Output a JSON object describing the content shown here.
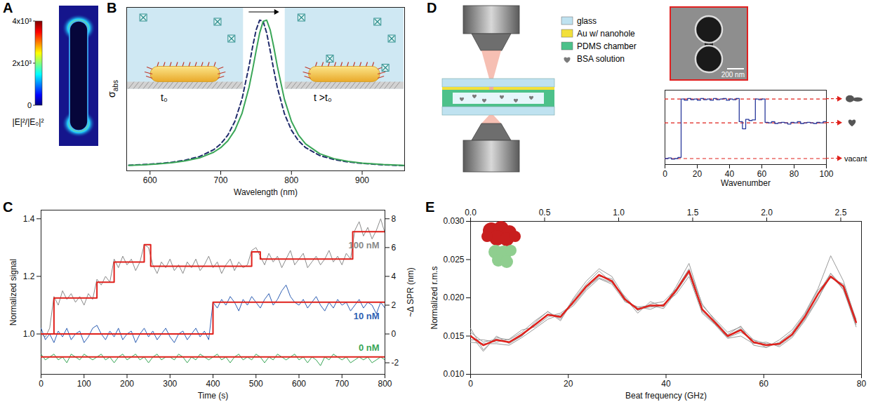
{
  "panel_A": {
    "letter": "A",
    "colorbar": {
      "range": [
        0,
        4000
      ],
      "ticks": [
        0,
        {
          "value": 2000,
          "label": "2x10³"
        },
        {
          "value": 4000,
          "label": "4x10³"
        }
      ],
      "label": "|E|²/|E₀|²"
    }
  },
  "panel_D": {
    "letter": "D",
    "legend": [
      {
        "label": "glass",
        "color": "#bfe2f0"
      },
      {
        "label": "Au w/ nanohole",
        "color": "#f2e03a"
      },
      {
        "label": "PDMS chamber",
        "color": "#4cc18a"
      },
      {
        "label": "BSA solution",
        "color": "#7a7a7a"
      }
    ],
    "scale_bar": "200 nm"
  },
  "chart_data": [
    {
      "panel": "B",
      "type": "line",
      "x_label": "Wavelength (nm)",
      "y_label": "σabs",
      "xlim": [
        567,
        960
      ],
      "xticks": [
        600,
        700,
        800,
        900
      ],
      "ylim": [
        0,
        1.1
      ],
      "yticks": [],
      "tick_labels": "x",
      "inset_labels": [
        "t₀",
        "t >t₀"
      ],
      "x": [
        570,
        590,
        610,
        630,
        650,
        670,
        690,
        700,
        710,
        720,
        730,
        740,
        745,
        750,
        755,
        760,
        765,
        770,
        775,
        780,
        790,
        800,
        810,
        820,
        840,
        860,
        880,
        900,
        930,
        960
      ],
      "series": [
        {
          "color": "#1f2a6b",
          "line_style": "dashed",
          "values": [
            0.038,
            0.042,
            0.048,
            0.057,
            0.072,
            0.096,
            0.142,
            0.181,
            0.24,
            0.333,
            0.482,
            0.704,
            0.833,
            0.947,
            1.014,
            1.006,
            0.927,
            0.807,
            0.679,
            0.562,
            0.385,
            0.273,
            0.202,
            0.156,
            0.103,
            0.076,
            0.06,
            0.05,
            0.04,
            0.035
          ]
        },
        {
          "color": "#3aa657",
          "line_style": "solid",
          "values": [
            0.037,
            0.04,
            0.046,
            0.054,
            0.067,
            0.087,
            0.125,
            0.156,
            0.202,
            0.273,
            0.385,
            0.562,
            0.679,
            0.807,
            0.927,
            1.006,
            1.014,
            0.947,
            0.833,
            0.704,
            0.482,
            0.333,
            0.24,
            0.181,
            0.115,
            0.082,
            0.064,
            0.052,
            0.042,
            0.036
          ]
        }
      ]
    },
    {
      "panel": "C",
      "type": "line",
      "x_label": "Time (s)",
      "y_label": "Normalized signal",
      "y2_label": "~Δ SPR (nm)",
      "xlim": [
        0,
        800
      ],
      "xticks": [
        0,
        100,
        200,
        300,
        400,
        500,
        600,
        700,
        800
      ],
      "ylim": [
        0.86,
        1.43
      ],
      "yticks": [
        {
          "value": 1,
          "label": "1.0"
        },
        1.2,
        1.4
      ],
      "y2lim": [
        -2.8,
        8.6
      ],
      "y2ticks": [
        -2,
        0,
        2,
        4,
        6,
        8
      ],
      "x": [
        0,
        10,
        20,
        30,
        40,
        50,
        60,
        70,
        80,
        90,
        100,
        110,
        120,
        130,
        140,
        150,
        160,
        170,
        180,
        190,
        200,
        210,
        220,
        230,
        240,
        250,
        260,
        270,
        280,
        290,
        300,
        310,
        320,
        330,
        340,
        350,
        360,
        370,
        380,
        390,
        400,
        410,
        420,
        430,
        440,
        450,
        460,
        470,
        480,
        490,
        500,
        510,
        520,
        530,
        540,
        550,
        560,
        570,
        580,
        590,
        600,
        610,
        620,
        630,
        640,
        650,
        660,
        670,
        680,
        690,
        700,
        710,
        720,
        730,
        740,
        750,
        760,
        770,
        780,
        790,
        800
      ],
      "series": [
        {
          "name": "100 nM",
          "color": "#8a8a8a",
          "values": [
            1.0,
            0.99,
            1.02,
            1.13,
            1.1,
            1.15,
            1.12,
            1.14,
            1.11,
            1.13,
            1.1,
            1.14,
            1.12,
            1.19,
            1.17,
            1.2,
            1.18,
            1.26,
            1.23,
            1.27,
            1.24,
            1.26,
            1.22,
            1.25,
            1.31,
            1.3,
            1.24,
            1.21,
            1.25,
            1.23,
            1.26,
            1.22,
            1.24,
            1.21,
            1.25,
            1.23,
            1.26,
            1.22,
            1.24,
            1.27,
            1.23,
            1.25,
            1.21,
            1.24,
            1.26,
            1.22,
            1.25,
            1.23,
            1.24,
            1.29,
            1.3,
            1.27,
            1.24,
            1.28,
            1.25,
            1.27,
            1.23,
            1.26,
            1.29,
            1.24,
            1.26,
            1.28,
            1.23,
            1.25,
            1.27,
            1.24,
            1.26,
            1.29,
            1.25,
            1.27,
            1.24,
            1.28,
            1.26,
            1.36,
            1.39,
            1.34,
            1.37,
            1.33,
            1.36,
            1.4,
            1.35
          ]
        },
        {
          "name": "10 nM",
          "color": "#2f5fb3",
          "values": [
            1.02,
            0.98,
            1.0,
            0.97,
            1.01,
            0.99,
            1.02,
            0.98,
            1.0,
            1.01,
            0.97,
            0.99,
            1.02,
            1.03,
            1.0,
            0.98,
            1.01,
            0.99,
            1.02,
            0.98,
            1.0,
            1.01,
            0.97,
            1.0,
            1.02,
            0.99,
            1.01,
            0.98,
            1.0,
            1.02,
            0.99,
            0.97,
            1.0,
            1.01,
            0.98,
            1.0,
            1.02,
            0.99,
            1.01,
            0.98,
            1.11,
            1.09,
            1.12,
            1.1,
            1.13,
            1.11,
            1.08,
            1.12,
            1.1,
            1.13,
            1.11,
            1.09,
            1.12,
            1.14,
            1.1,
            1.12,
            1.15,
            1.17,
            1.13,
            1.11,
            1.1,
            1.12,
            1.09,
            1.11,
            1.13,
            1.1,
            1.08,
            1.11,
            1.09,
            1.12,
            1.1,
            1.11,
            1.08,
            1.1,
            1.12,
            1.09,
            1.11,
            1.1,
            1.07,
            1.11,
            1.09
          ]
        },
        {
          "name": "0 nM",
          "color": "#3aa657",
          "values": [
            0.93,
            0.91,
            0.92,
            0.93,
            0.91,
            0.92,
            0.9,
            0.93,
            0.92,
            0.91,
            0.93,
            0.92,
            0.91,
            0.92,
            0.93,
            0.91,
            0.92,
            0.9,
            0.92,
            0.93,
            0.91,
            0.92,
            0.93,
            0.91,
            0.92,
            0.9,
            0.92,
            0.93,
            0.91,
            0.92,
            0.92,
            0.91,
            0.93,
            0.92,
            0.9,
            0.92,
            0.91,
            0.93,
            0.92,
            0.91,
            0.92,
            0.93,
            0.91,
            0.92,
            0.9,
            0.92,
            0.93,
            0.91,
            0.92,
            0.91,
            0.93,
            0.92,
            0.9,
            0.92,
            0.91,
            0.93,
            0.92,
            0.91,
            0.92,
            0.93,
            0.91,
            0.92,
            0.9,
            0.92,
            0.91,
            0.89,
            0.92,
            0.91,
            0.93,
            0.92,
            0.91,
            0.92,
            0.9,
            0.91,
            0.92,
            0.91,
            0.92,
            0.9,
            0.91,
            0.92,
            0.91
          ]
        }
      ],
      "fits": [
        {
          "color": "#e0201b",
          "line_style": "step",
          "x": [
            0,
            30,
            130,
            170,
            240,
            255,
            490,
            510,
            725,
            800
          ],
          "values": [
            1.0,
            1.125,
            1.18,
            1.25,
            1.31,
            1.235,
            1.285,
            1.26,
            1.355,
            1.355
          ]
        },
        {
          "color": "#e0201b",
          "line_style": "step",
          "x": [
            0,
            400,
            800
          ],
          "values": [
            1.0,
            1.11,
            1.11
          ]
        },
        {
          "color": "#e0201b",
          "line_style": "step",
          "x": [
            0,
            800
          ],
          "values": [
            0.92,
            0.92
          ]
        }
      ]
    },
    {
      "type": "line",
      "x_label": "Wavenumber",
      "xlim": [
        0,
        100
      ],
      "xticks": [
        0,
        20,
        40,
        60,
        80,
        100
      ],
      "ylim": [
        -0.1,
        1.15
      ],
      "yticks": [],
      "tick_labels": "x",
      "x": [
        0,
        2,
        4,
        6,
        8,
        10,
        12,
        14,
        16,
        18,
        20,
        22,
        24,
        26,
        28,
        30,
        32,
        34,
        36,
        38,
        40,
        42,
        44,
        46,
        48,
        50,
        52,
        54,
        56,
        58,
        60,
        62,
        64,
        66,
        68,
        70,
        72,
        74,
        76,
        78,
        80,
        82,
        84,
        86,
        88,
        90,
        92,
        94,
        96,
        98,
        100
      ],
      "series": [
        {
          "color": "#2a3a9c",
          "line_style": "step",
          "values": [
            0.0,
            0.01,
            -0.01,
            0.0,
            0.02,
            1.0,
            0.98,
            1.01,
            0.99,
            1.0,
            0.98,
            1.01,
            0.99,
            1.0,
            0.98,
            1.01,
            0.99,
            1.0,
            1.01,
            0.98,
            1.0,
            0.99,
            1.01,
            0.62,
            0.5,
            0.66,
            0.64,
            0.65,
            1.0,
            0.99,
            1.0,
            0.61,
            0.6,
            0.62,
            0.59,
            0.6,
            0.61,
            0.6,
            0.58,
            0.61,
            0.6,
            0.62,
            0.59,
            0.6,
            0.61,
            0.6,
            0.59,
            0.61,
            0.6,
            0.62,
            0.6
          ]
        }
      ],
      "levels": [
        {
          "value": 1.0,
          "label": null,
          "color": "#e0201b",
          "line_style": "dashed"
        },
        {
          "value": 0.6,
          "label": null,
          "color": "#e0201b",
          "line_style": "dashed"
        },
        {
          "value": 0.0,
          "label": "vacant",
          "color": "#e0201b",
          "line_style": "dashed"
        }
      ]
    },
    {
      "panel": "E",
      "type": "line",
      "x_label": "Beat frequency (GHz)",
      "y_label": "Normalized r.m.s",
      "xlim": [
        0,
        80
      ],
      "xticks": [
        0,
        20,
        40,
        60,
        80
      ],
      "x2lim": [
        0,
        2.64
      ],
      "x2ticks": [
        {
          "value": 0,
          "label": "0.0"
        },
        0.5,
        {
          "value": 1,
          "label": "1.0"
        },
        1.5,
        {
          "value": 2,
          "label": "2.0"
        },
        2.5
      ],
      "ylim": [
        0.01,
        0.03
      ],
      "yticks": [
        {
          "value": 0.01,
          "label": "0.010"
        },
        0.015,
        {
          "value": 0.02,
          "label": "0.020"
        },
        0.025,
        {
          "value": 0.03,
          "label": "0.030"
        }
      ],
      "x": [
        0,
        2.6,
        5.3,
        7.9,
        10.5,
        13.2,
        15.8,
        18.4,
        21.1,
        23.7,
        26.3,
        28.9,
        31.6,
        34.2,
        36.8,
        39.5,
        42.1,
        44.7,
        47.4,
        50,
        52.6,
        55.3,
        57.9,
        60.5,
        63.2,
        65.8,
        68.4,
        71.1,
        73.7,
        76.3,
        78.9
      ],
      "series": [
        {
          "color": "#9a9a9a",
          "values": [
            0.016,
            0.0132,
            0.0148,
            0.0145,
            0.0155,
            0.017,
            0.0182,
            0.0172,
            0.02,
            0.0222,
            0.0238,
            0.0228,
            0.02,
            0.018,
            0.0195,
            0.0188,
            0.0215,
            0.0245,
            0.019,
            0.0172,
            0.0155,
            0.0162,
            0.0145,
            0.0135,
            0.0145,
            0.0158,
            0.018,
            0.0212,
            0.0255,
            0.0222,
            0.017
          ]
        },
        {
          "color": "#9a9a9a",
          "values": [
            0.0142,
            0.014,
            0.014,
            0.0138,
            0.0148,
            0.016,
            0.0172,
            0.0178,
            0.019,
            0.021,
            0.0225,
            0.0218,
            0.0195,
            0.0188,
            0.0185,
            0.0192,
            0.0205,
            0.0228,
            0.018,
            0.0165,
            0.0147,
            0.015,
            0.014,
            0.0142,
            0.0136,
            0.0148,
            0.017,
            0.0198,
            0.0232,
            0.021,
            0.0165
          ]
        },
        {
          "color": "#9a9a9a",
          "values": [
            0.0152,
            0.013,
            0.015,
            0.014,
            0.015,
            0.0168,
            0.0182,
            0.017,
            0.0198,
            0.0218,
            0.0235,
            0.022,
            0.0202,
            0.0183,
            0.0192,
            0.0195,
            0.0212,
            0.0238,
            0.0192,
            0.017,
            0.0152,
            0.0163,
            0.0138,
            0.0135,
            0.0142,
            0.0155,
            0.0178,
            0.021,
            0.0226,
            0.0218,
            0.0172
          ]
        },
        {
          "color": "#9a9a9a",
          "values": [
            0.0145,
            0.0145,
            0.0142,
            0.0146,
            0.0158,
            0.0162,
            0.0175,
            0.018,
            0.0192,
            0.0212,
            0.0228,
            0.0225,
            0.0195,
            0.0188,
            0.019,
            0.0186,
            0.0208,
            0.0232,
            0.0182,
            0.0166,
            0.0148,
            0.0155,
            0.0145,
            0.014,
            0.0138,
            0.015,
            0.0172,
            0.02,
            0.0228,
            0.0212,
            0.0162
          ]
        },
        {
          "color": "#9a9a9a",
          "values": [
            0.0155,
            0.0142,
            0.0146,
            0.0142,
            0.015,
            0.0166,
            0.0178,
            0.0176,
            0.0196,
            0.0214,
            0.0226,
            0.022,
            0.0198,
            0.0186,
            0.0188,
            0.019,
            0.021,
            0.0236,
            0.0184,
            0.0168,
            0.015,
            0.016,
            0.0142,
            0.0138,
            0.014,
            0.0152,
            0.0176,
            0.0206,
            0.0232,
            0.0214,
            0.0168
          ]
        },
        {
          "color": "#e0201b",
          "values": [
            0.015,
            0.0138,
            0.0145,
            0.0142,
            0.0152,
            0.0165,
            0.0178,
            0.0175,
            0.0195,
            0.0215,
            0.023,
            0.0222,
            0.0198,
            0.0185,
            0.019,
            0.019,
            0.021,
            0.0235,
            0.0185,
            0.0168,
            0.015,
            0.0158,
            0.0142,
            0.0138,
            0.014,
            0.0152,
            0.0175,
            0.0205,
            0.0228,
            0.0215,
            0.0168
          ]
        }
      ]
    }
  ]
}
